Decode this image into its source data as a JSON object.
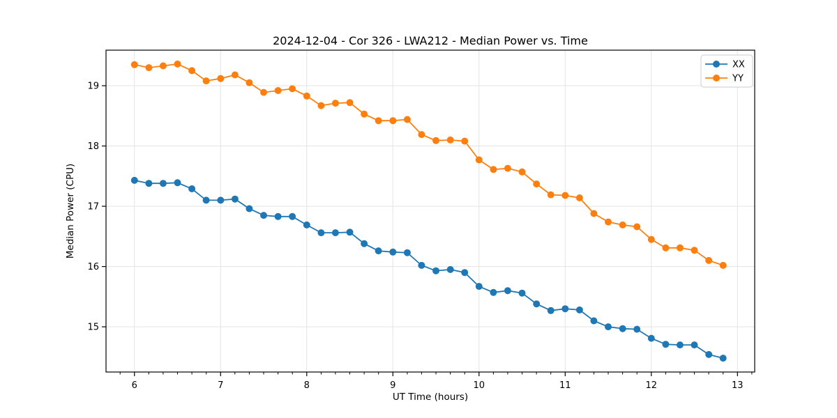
{
  "figure": {
    "background": "#ffffff"
  },
  "chart_data": {
    "type": "line",
    "title": "2024-12-04 - Cor 326 - LWA212 - Median Power vs. Time",
    "xlabel": "UT Time (hours)",
    "ylabel": "Median Power (CPU)",
    "xlim": [
      5.67,
      13.2
    ],
    "ylim": [
      14.25,
      19.59
    ],
    "xticks": [
      6,
      7,
      8,
      9,
      10,
      11,
      12,
      13
    ],
    "yticks": [
      15,
      16,
      17,
      18,
      19
    ],
    "x_minor_step": 0.1667,
    "grid": true,
    "grid_color": "#e3e3e3",
    "spine_color": "#000000",
    "legend_position": "upper right",
    "marker": "o",
    "x": [
      6.0,
      6.167,
      6.333,
      6.5,
      6.667,
      6.833,
      7.0,
      7.167,
      7.333,
      7.5,
      7.667,
      7.833,
      8.0,
      8.167,
      8.333,
      8.5,
      8.667,
      8.833,
      9.0,
      9.167,
      9.333,
      9.5,
      9.667,
      9.833,
      10.0,
      10.167,
      10.333,
      10.5,
      10.667,
      10.833,
      11.0,
      11.167,
      11.333,
      11.5,
      11.667,
      11.833,
      12.0,
      12.167,
      12.333,
      12.5,
      12.667,
      12.833
    ],
    "series": [
      {
        "name": "XX",
        "color": "#1f77b4",
        "values": [
          17.43,
          17.38,
          17.38,
          17.39,
          17.29,
          17.1,
          17.1,
          17.12,
          16.96,
          16.85,
          16.83,
          16.83,
          16.69,
          16.56,
          16.56,
          16.57,
          16.38,
          16.26,
          16.24,
          16.23,
          16.02,
          15.93,
          15.95,
          15.9,
          15.67,
          15.57,
          15.6,
          15.56,
          15.38,
          15.27,
          15.3,
          15.28,
          15.1,
          15.0,
          14.97,
          14.96,
          14.81,
          14.71,
          14.7,
          14.7,
          14.54,
          14.48
        ]
      },
      {
        "name": "YY",
        "color": "#ff7f0e",
        "values": [
          19.35,
          19.3,
          19.33,
          19.36,
          19.25,
          19.08,
          19.12,
          19.18,
          19.05,
          18.89,
          18.92,
          18.95,
          18.83,
          18.67,
          18.71,
          18.72,
          18.53,
          18.42,
          18.42,
          18.44,
          18.19,
          18.09,
          18.1,
          18.08,
          17.77,
          17.61,
          17.63,
          17.57,
          17.37,
          17.19,
          17.18,
          17.14,
          16.88,
          16.74,
          16.69,
          16.66,
          16.45,
          16.31,
          16.31,
          16.27,
          16.1,
          16.02
        ]
      }
    ]
  }
}
